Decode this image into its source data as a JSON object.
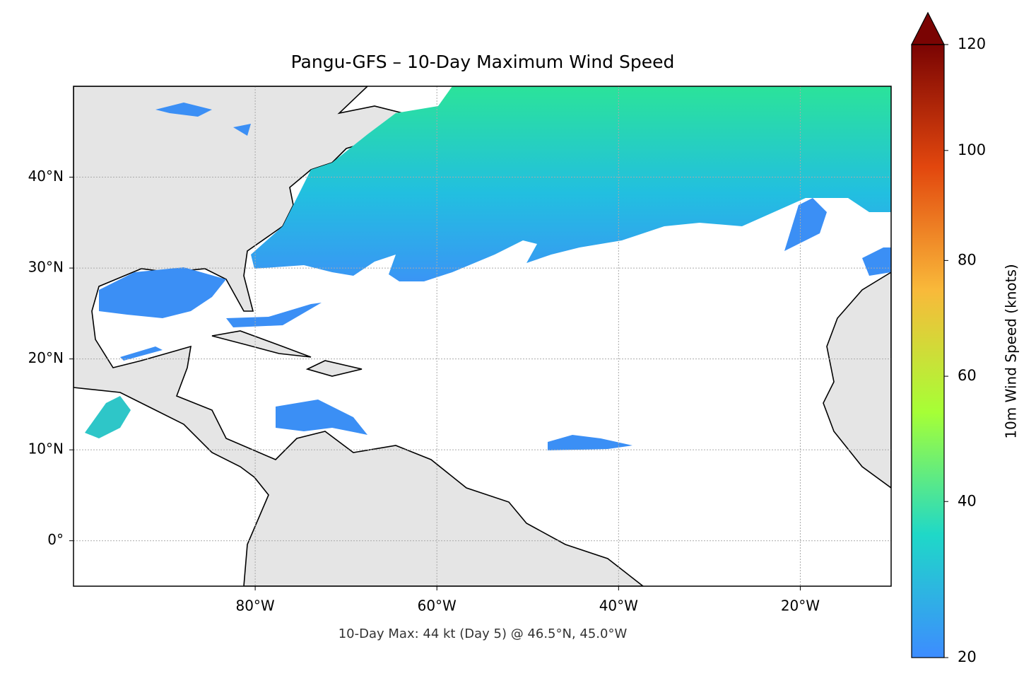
{
  "chart_data": {
    "type": "map",
    "title": "Pangu-GFS – 10-Day Maximum Wind Speed",
    "footnote": "10-Day Max: 44 kt (Day 5) @ 46.5°N, 45.0°W",
    "xlim": [
      -100,
      -10
    ],
    "ylim": [
      -5,
      50
    ],
    "xticks": [
      {
        "value": -80,
        "label": "80°W"
      },
      {
        "value": -60,
        "label": "60°W"
      },
      {
        "value": -40,
        "label": "40°W"
      },
      {
        "value": -20,
        "label": "20°W"
      }
    ],
    "yticks": [
      {
        "value": 0,
        "label": "0°"
      },
      {
        "value": 10,
        "label": "10°N"
      },
      {
        "value": 20,
        "label": "20°N"
      },
      {
        "value": 30,
        "label": "30°N"
      },
      {
        "value": 40,
        "label": "40°N"
      }
    ],
    "grid": true,
    "colorbar": {
      "label": "10m Wind Speed (knots)",
      "lim": [
        20,
        120
      ],
      "ticks": [
        20,
        40,
        60,
        80,
        100,
        120
      ],
      "norm": "power",
      "gamma": 0.85,
      "extend": "max",
      "colors": [
        "#3d8cff",
        "#1fd8c8",
        "#a6ff36",
        "#f9b93a",
        "#e2470e",
        "#7a0403"
      ]
    }
  }
}
